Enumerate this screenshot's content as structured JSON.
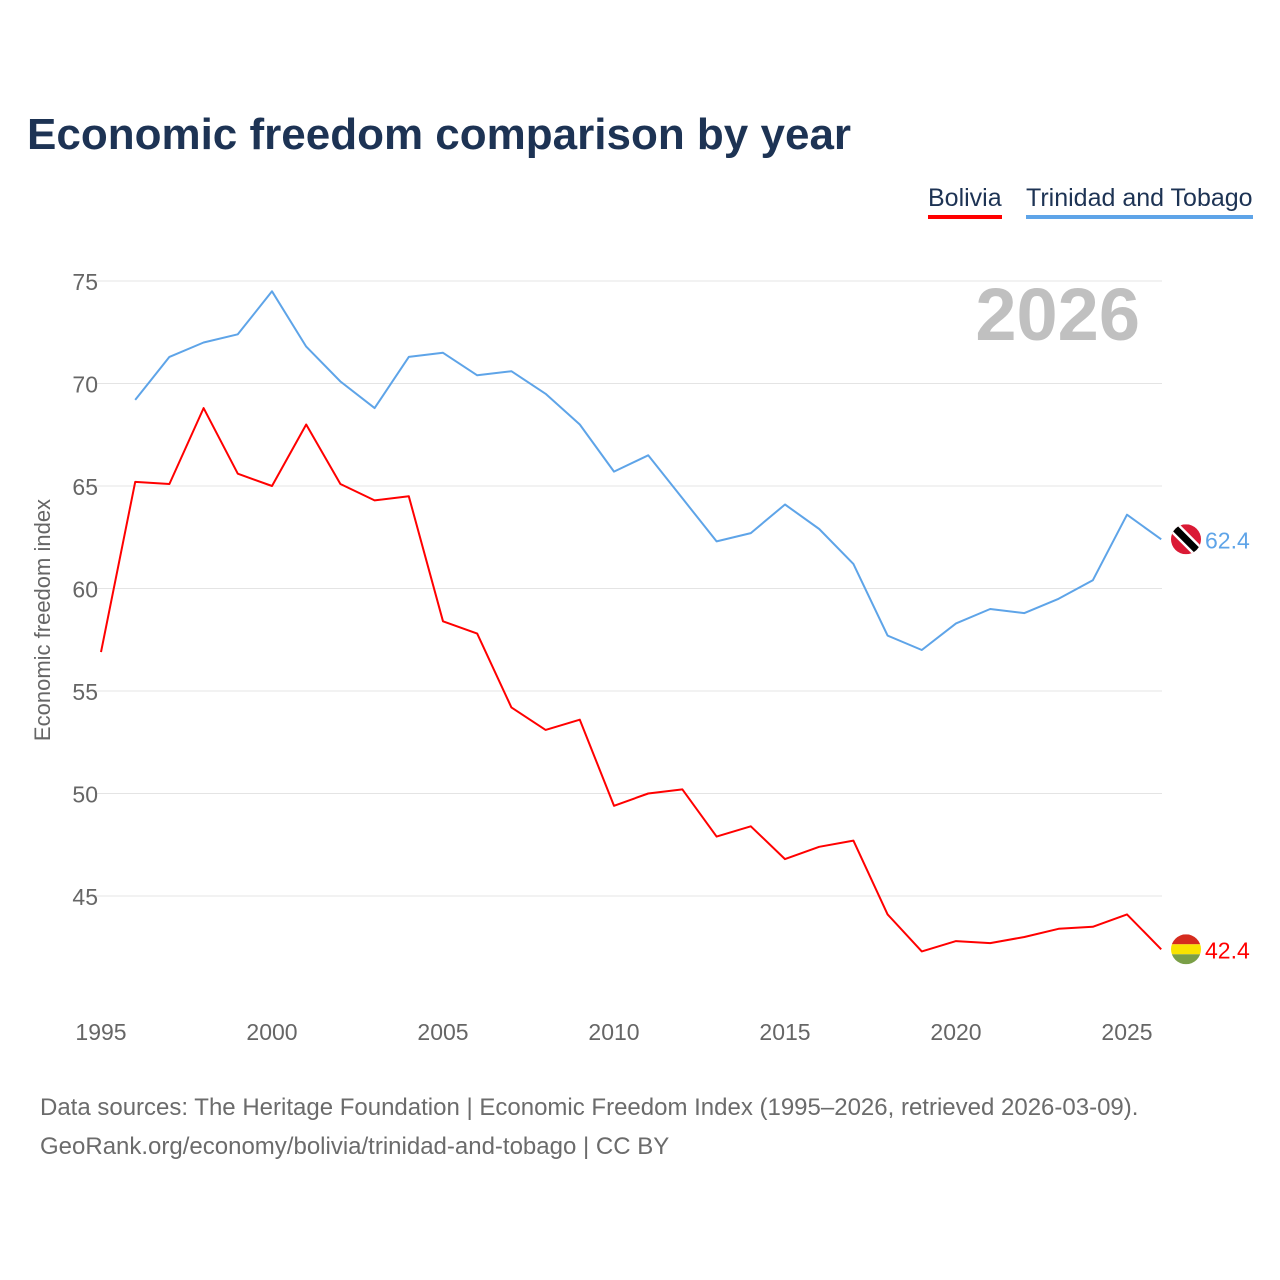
{
  "title": "Economic freedom comparison by year",
  "legend": [
    "Bolivia",
    "Trinidad and Tobago"
  ],
  "footer": {
    "line1": "Data sources: The Heritage Foundation | Economic Freedom Index (1995–2026, retrieved 2026-03-09).",
    "line2": "GeoRank.org/economy/bolivia/trinidad-and-tobago | CC BY"
  },
  "chart_data": {
    "type": "line",
    "title": "Economic freedom comparison by year",
    "ylabel": "Economic freedom index",
    "xlabel": "",
    "year_watermark": "2026",
    "xlim": [
      1995,
      2026
    ],
    "ylim": [
      40,
      76
    ],
    "yticks": [
      45,
      50,
      55,
      60,
      65,
      70,
      75
    ],
    "xticks": [
      1995,
      2000,
      2005,
      2010,
      2015,
      2020,
      2025
    ],
    "grid": true,
    "legend_position": "top-right",
    "series": [
      {
        "name": "Bolivia",
        "color": "#ff0000",
        "end_label": "42.4",
        "x": [
          1995,
          1996,
          1997,
          1998,
          1999,
          2000,
          2001,
          2002,
          2003,
          2004,
          2005,
          2006,
          2007,
          2008,
          2009,
          2010,
          2011,
          2012,
          2013,
          2014,
          2015,
          2016,
          2017,
          2018,
          2019,
          2020,
          2021,
          2022,
          2023,
          2024,
          2025,
          2026
        ],
        "values": [
          56.9,
          65.2,
          65.1,
          68.8,
          65.6,
          65.0,
          68.0,
          65.1,
          64.3,
          64.5,
          58.4,
          57.8,
          54.2,
          53.1,
          53.6,
          49.4,
          50.0,
          50.2,
          47.9,
          48.4,
          46.8,
          47.4,
          47.7,
          44.1,
          42.3,
          42.8,
          42.7,
          43.0,
          43.4,
          43.5,
          44.1,
          42.4
        ]
      },
      {
        "name": "Trinidad and Tobago",
        "color": "#5ea4e8",
        "end_label": "62.4",
        "x": [
          1996,
          1997,
          1998,
          1999,
          2000,
          2001,
          2002,
          2003,
          2004,
          2005,
          2006,
          2007,
          2008,
          2009,
          2010,
          2011,
          2012,
          2013,
          2014,
          2015,
          2016,
          2017,
          2018,
          2019,
          2020,
          2021,
          2022,
          2023,
          2024,
          2025,
          2026
        ],
        "values": [
          69.2,
          71.3,
          72.0,
          72.4,
          74.5,
          71.8,
          70.1,
          68.8,
          71.3,
          71.5,
          70.4,
          70.6,
          69.5,
          68.0,
          65.7,
          66.5,
          64.4,
          62.3,
          62.7,
          64.1,
          62.9,
          61.2,
          57.7,
          57.0,
          58.3,
          59.0,
          58.8,
          59.5,
          60.4,
          63.6,
          62.4
        ]
      }
    ]
  }
}
